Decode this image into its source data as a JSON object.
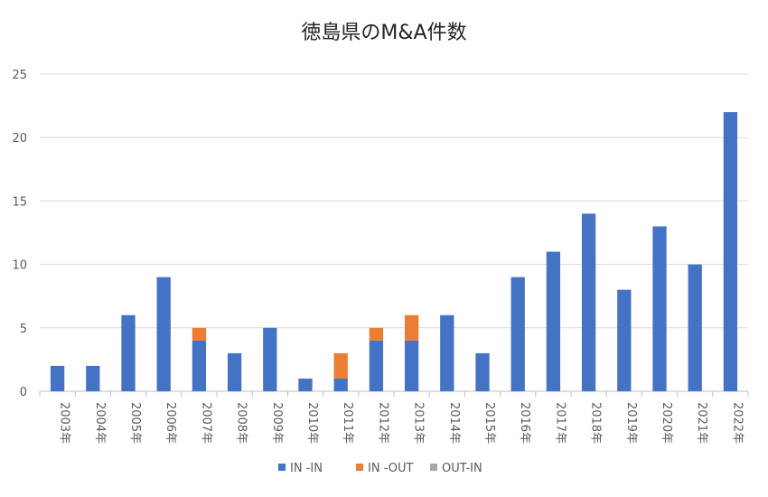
{
  "chart_data": {
    "type": "bar",
    "stacked": true,
    "title": "徳島県のM&A件数",
    "xlabel": "",
    "ylabel": "",
    "ylim": [
      0,
      25
    ],
    "yticks": [
      0,
      5,
      10,
      15,
      20,
      25
    ],
    "grid": true,
    "legend_position": "bottom",
    "categories": [
      "2003年",
      "2004年",
      "2005年",
      "2006年",
      "2007年",
      "2008年",
      "2009年",
      "2010年",
      "2011年",
      "2012年",
      "2013年",
      "2014年",
      "2015年",
      "2016年",
      "2017年",
      "2018年",
      "2019年",
      "2020年",
      "2021年",
      "2022年"
    ],
    "series": [
      {
        "name": "IN -IN",
        "color": "#4472C4",
        "values": [
          2,
          2,
          6,
          9,
          4,
          3,
          5,
          1,
          1,
          4,
          4,
          6,
          3,
          9,
          11,
          14,
          8,
          13,
          10,
          22
        ]
      },
      {
        "name": "IN -OUT",
        "color": "#ED7D31",
        "values": [
          0,
          0,
          0,
          0,
          1,
          0,
          0,
          0,
          2,
          1,
          2,
          0,
          0,
          0,
          0,
          0,
          0,
          0,
          0,
          0
        ]
      },
      {
        "name": "OUT-IN",
        "color": "#A5A5A5",
        "values": [
          0,
          0,
          0,
          0,
          0,
          0,
          0,
          0,
          0,
          0,
          0,
          0,
          0,
          0,
          0,
          0,
          0,
          0,
          0,
          0
        ]
      }
    ]
  }
}
